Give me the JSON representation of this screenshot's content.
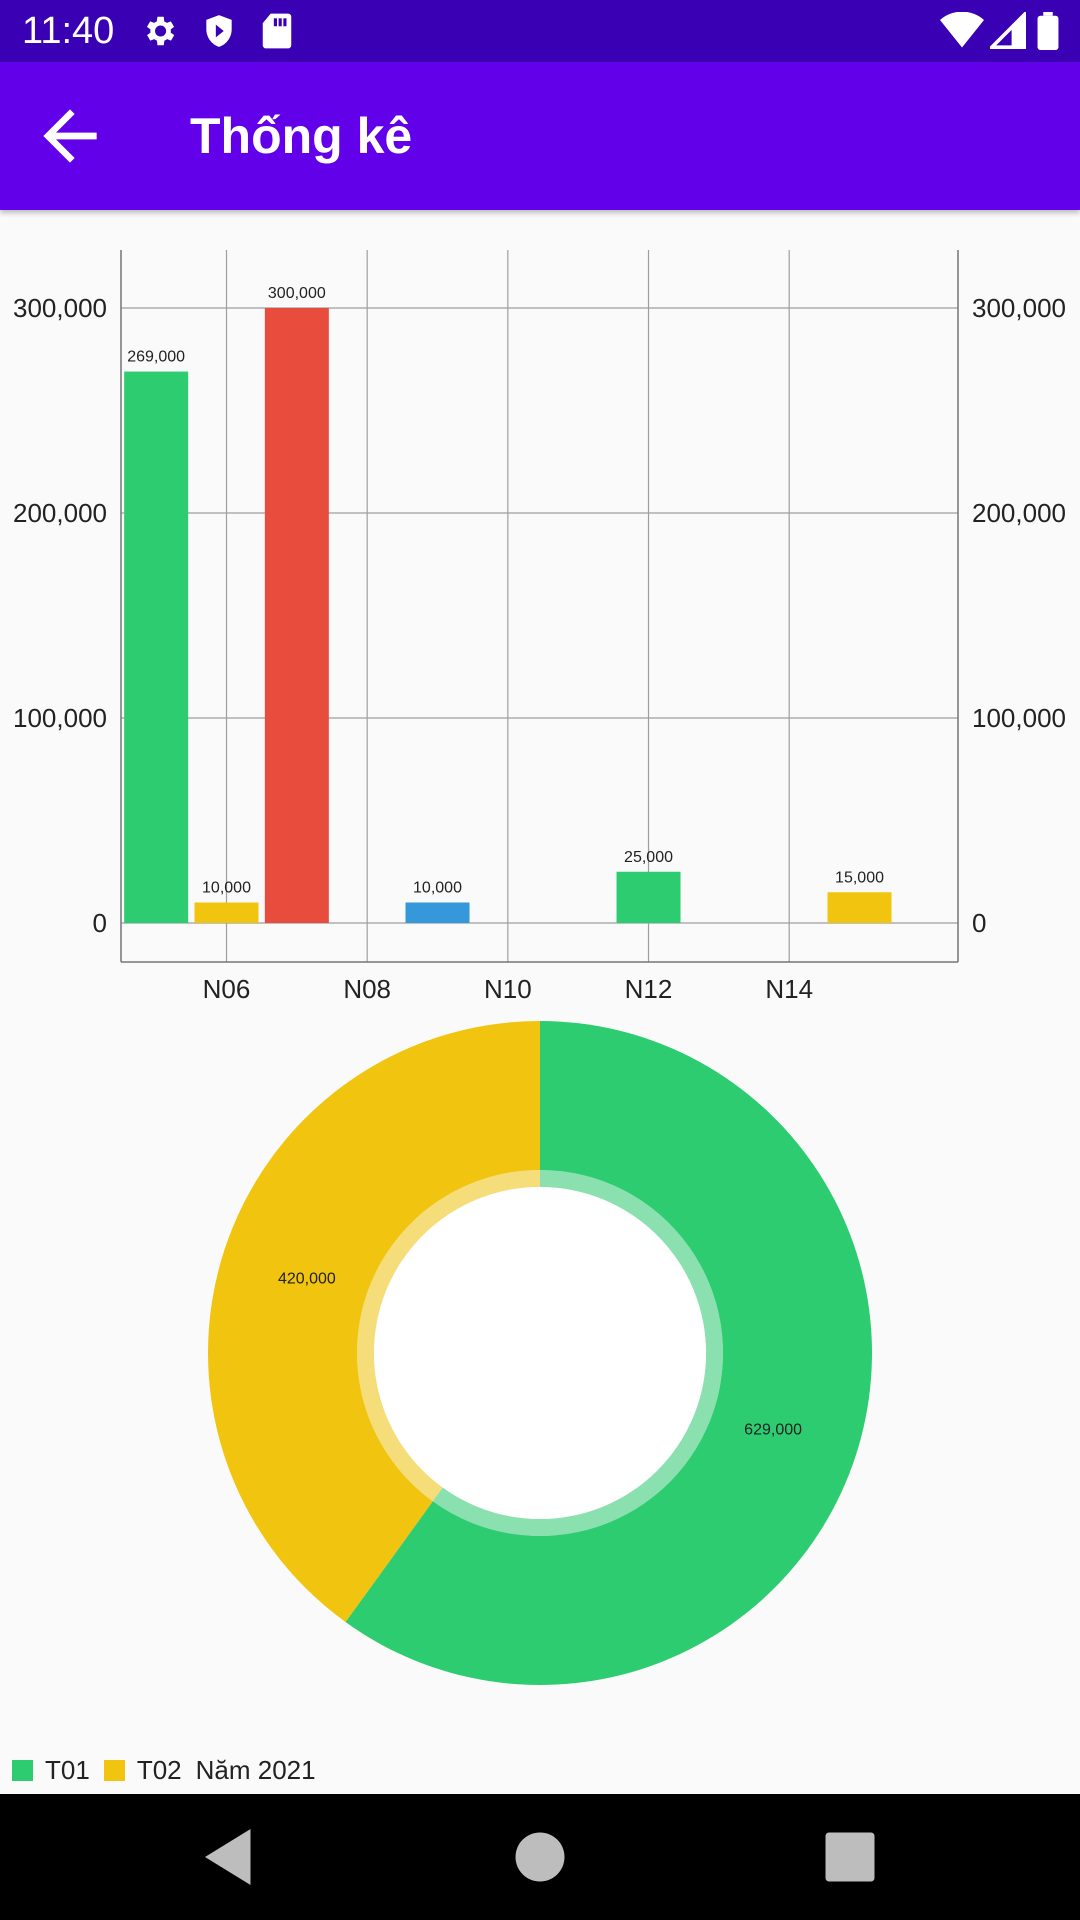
{
  "status_bar": {
    "time": "11:40",
    "icons": [
      "gear-icon",
      "shield-icon",
      "sd-card-icon",
      "wifi-icon",
      "signal-icon",
      "battery-icon"
    ]
  },
  "app_bar": {
    "title": "Thống kê",
    "back_icon": "arrow-left-icon"
  },
  "chart_data": [
    {
      "type": "bar",
      "xlabel": "",
      "ylabel": "",
      "ylim": [
        0,
        300000
      ],
      "y_ticks": [
        "0",
        "100,000",
        "200,000",
        "300,000"
      ],
      "y_tick_values": [
        0,
        100000,
        200000,
        300000
      ],
      "x_ticks": [
        "N06",
        "N08",
        "N10",
        "N12",
        "N14"
      ],
      "x_tick_values": [
        6,
        8,
        10,
        12,
        14
      ],
      "x_range": [
        4.5,
        16.4
      ],
      "grid": true,
      "bars": [
        {
          "x": 5.0,
          "value": 269000,
          "label": "269,000",
          "color": "#2ecc71"
        },
        {
          "x": 6.0,
          "value": 10000,
          "label": "10,000",
          "color": "#f1c40f"
        },
        {
          "x": 7.0,
          "value": 300000,
          "label": "300,000",
          "color": "#e74c3c"
        },
        {
          "x": 9.0,
          "value": 10000,
          "label": "10,000",
          "color": "#3498db"
        },
        {
          "x": 12.0,
          "value": 25000,
          "label": "25,000",
          "color": "#2ecc71"
        },
        {
          "x": 15.0,
          "value": 15000,
          "label": "15,000",
          "color": "#f1c40f"
        }
      ]
    },
    {
      "type": "pie",
      "slices": [
        {
          "name": "T01",
          "value": 629000,
          "label": "629,000",
          "color": "#2ecc71"
        },
        {
          "name": "T02",
          "value": 420000,
          "label": "420,000",
          "color": "#f1c40f"
        }
      ],
      "legend_position": "bottom-left",
      "center_text": "Năm 2021"
    }
  ],
  "nav_bar": {
    "icons": [
      "back-triangle-icon",
      "home-circle-icon",
      "recents-square-icon"
    ]
  }
}
